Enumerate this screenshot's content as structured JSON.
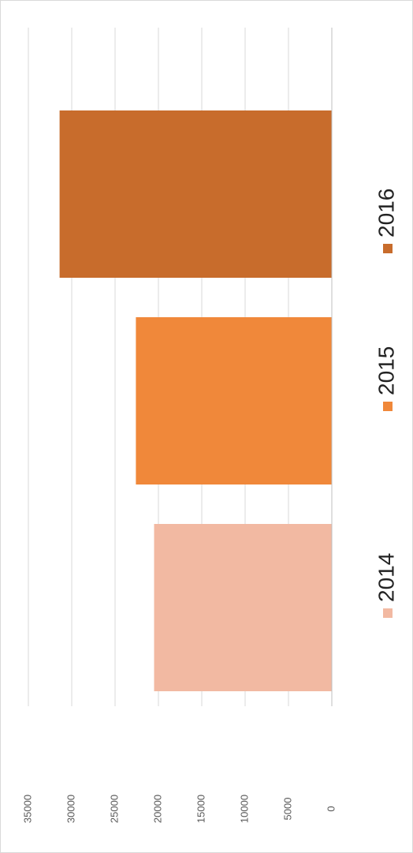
{
  "chart_data": {
    "type": "bar",
    "orientation": "rotated",
    "categories": [
      null
    ],
    "series": [
      {
        "name": "2014",
        "color": "#f2b9a2",
        "values": [
          20500
        ]
      },
      {
        "name": "2015",
        "color": "#f0883a",
        "values": [
          22600
        ]
      },
      {
        "name": "2016",
        "color": "#c86c2c",
        "values": [
          31400
        ]
      }
    ],
    "ylim": [
      0,
      35000
    ],
    "yticks": [
      0,
      5000,
      10000,
      15000,
      20000,
      25000,
      30000,
      35000
    ],
    "grid": true
  }
}
